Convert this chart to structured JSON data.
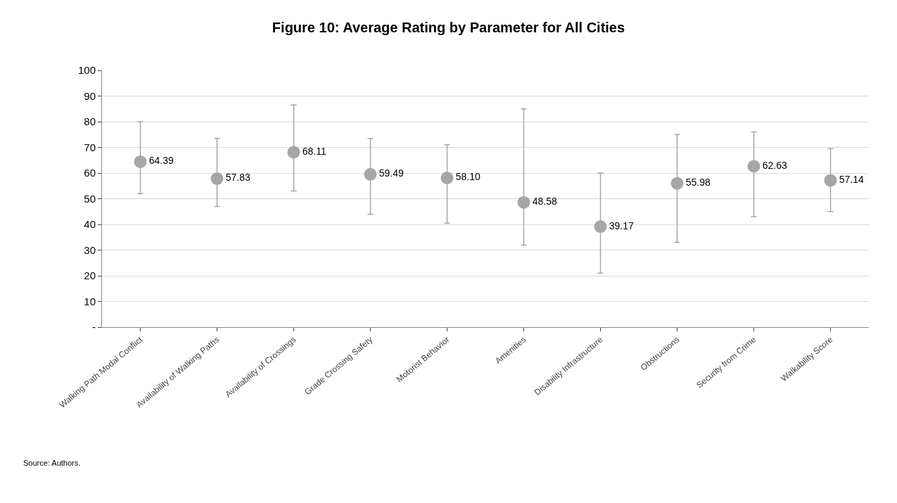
{
  "chart_data": {
    "type": "scatter",
    "title": "Figure 10: Average Rating by Parameter for All Cities",
    "categories": [
      "Walking Path Modal Conflict",
      "Availability of Walking Paths",
      "Availability of Crossings",
      "Grade Crossing Safety",
      "Motorist Behavior",
      "Amenities",
      "Disability Infrastructure",
      "Obstructions",
      "Security from Crime",
      "Walkability Score"
    ],
    "values": [
      64.39,
      57.83,
      68.11,
      59.49,
      58.1,
      48.58,
      39.17,
      55.98,
      62.63,
      57.14
    ],
    "errors": [
      [
        52,
        80
      ],
      [
        47,
        73.5
      ],
      [
        53,
        86.5
      ],
      [
        44,
        73.5
      ],
      [
        40.5,
        71
      ],
      [
        32,
        85
      ],
      [
        21,
        60
      ],
      [
        33,
        75
      ],
      [
        43,
        76
      ],
      [
        45,
        69.5
      ]
    ],
    "value_labels": [
      "64.39",
      "57.83",
      "68.11",
      "59.49",
      "58.10",
      "48.58",
      "39.17",
      "55.98",
      "62.63",
      "57.14"
    ],
    "color": "#a6a6a6",
    "marker": "circle",
    "ylim": [
      0,
      100
    ],
    "yticks": [
      {
        "value": 0,
        "label": "-"
      },
      10,
      20,
      30,
      40,
      50,
      60,
      70,
      80,
      90,
      100
    ],
    "grid": "y",
    "annotations": [
      "Source: Authors."
    ]
  }
}
